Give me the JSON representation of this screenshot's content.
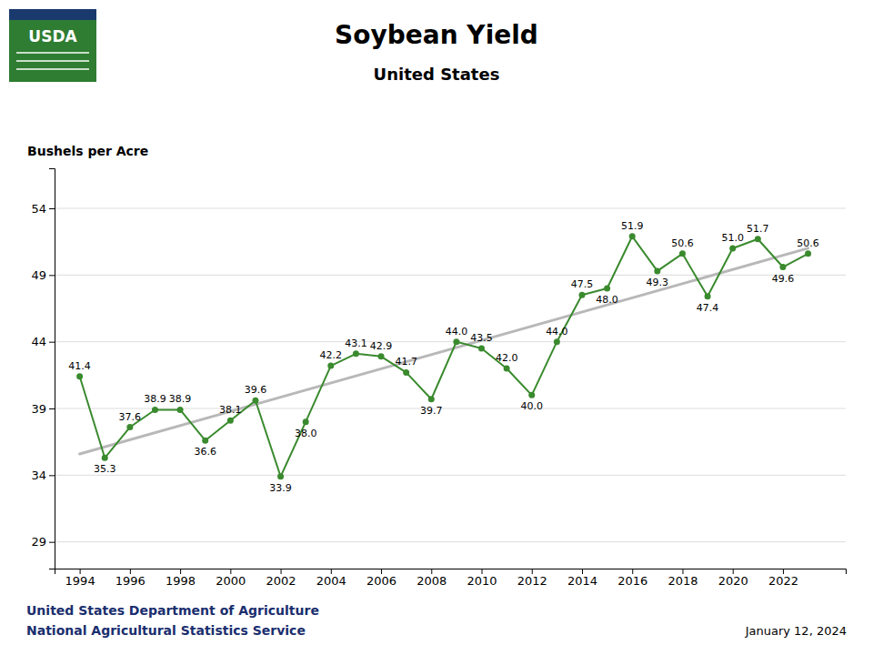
{
  "chart_data": {
    "type": "line",
    "title": "Soybean Yield",
    "subtitle": "United States",
    "ylabel": "Bushels per Acre",
    "annotations": [
      "USDA",
      "United States Department of Agriculture",
      "National Agricultural Statistics Service",
      "January 12, 2024"
    ],
    "x": [
      1994,
      1995,
      1996,
      1997,
      1998,
      1999,
      2000,
      2001,
      2002,
      2003,
      2004,
      2005,
      2006,
      2007,
      2008,
      2009,
      2010,
      2011,
      2012,
      2013,
      2014,
      2015,
      2016,
      2017,
      2018,
      2019,
      2020,
      2021,
      2022,
      2023
    ],
    "series": [
      {
        "values": [
          41.4,
          35.3,
          37.6,
          38.9,
          38.9,
          36.6,
          38.1,
          39.6,
          33.9,
          38.0,
          42.2,
          43.1,
          42.9,
          41.7,
          39.7,
          44.0,
          43.5,
          42.0,
          40.0,
          44.0,
          47.5,
          48.0,
          51.9,
          49.3,
          50.6,
          47.4,
          51.0,
          51.7,
          49.6,
          50.6
        ],
        "value_labels": [
          "41.4",
          "35.3",
          "37.6",
          "38.9",
          "38.9",
          "36.6",
          "38.1",
          "39.6",
          "33.9",
          "38.0",
          "42.2",
          "43.1",
          "42.9",
          "41.7",
          "39.7",
          "44.0",
          "43.5",
          "42.0",
          "40.0",
          "44.0",
          "47.5",
          "48.0",
          "51.9",
          "49.3",
          "50.6",
          "47.4",
          "51.0",
          "51.7",
          "49.6",
          "50.6"
        ],
        "color": "#3a8a2e",
        "marker": "circle",
        "data_labels": true
      },
      {
        "type": "line",
        "x": [
          1994,
          2023
        ],
        "values": [
          35.5884,
          51.0116
        ],
        "color": "#b8b8b8"
      }
    ],
    "xlim": [
      1993.0,
      2024.5
    ],
    "ylim": [
      27,
      57
    ],
    "xticks": [
      1994,
      1996,
      1998,
      2000,
      2002,
      2004,
      2006,
      2008,
      2010,
      2012,
      2014,
      2016,
      2018,
      2020,
      2022
    ],
    "yticks": [
      29,
      34,
      39,
      44,
      49,
      54
    ],
    "grid": true
  }
}
